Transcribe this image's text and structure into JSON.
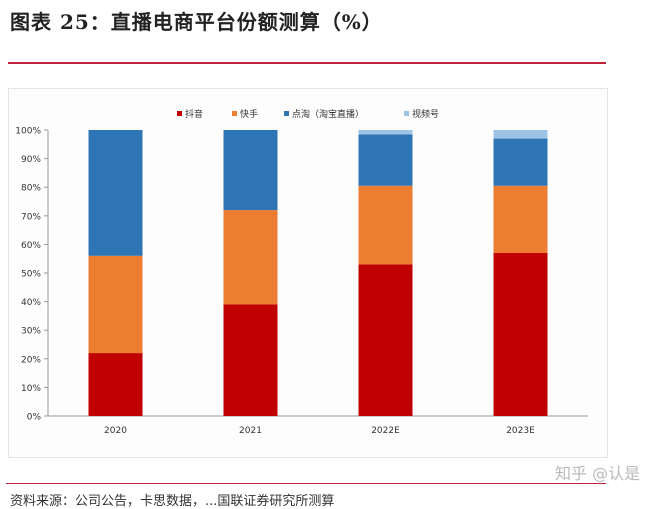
{
  "title": "图表 25：直播电商平台份额测算（%）",
  "source": "资料来源：公司公告，卡思数据，...国联证券研究所测算",
  "watermark": "知乎 @认是",
  "chart_data": {
    "type": "bar",
    "stacked": true,
    "categories": [
      "2020",
      "2021",
      "2022E",
      "2023E"
    ],
    "series": [
      {
        "name": "抖音",
        "color": "#c00000",
        "values": [
          22,
          39,
          53,
          57
        ]
      },
      {
        "name": "快手",
        "color": "#ed7d31",
        "values": [
          34,
          33,
          27.5,
          23.5
        ]
      },
      {
        "name": "点淘（淘宝直播）",
        "color": "#2e75b6",
        "values": [
          44,
          28,
          18,
          16.5
        ]
      },
      {
        "name": "视频号",
        "color": "#9dc3e6",
        "values": [
          0,
          0,
          1.5,
          3
        ]
      }
    ],
    "ylim": [
      0,
      100
    ],
    "yticks": [
      "0%",
      "10%",
      "20%",
      "30%",
      "40%",
      "50%",
      "60%",
      "70%",
      "80%",
      "90%",
      "100%"
    ],
    "legend": "top",
    "grid": false
  }
}
